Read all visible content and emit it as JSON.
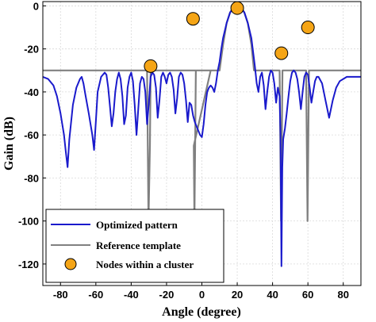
{
  "chart_data": {
    "type": "line",
    "title": "",
    "xlabel": "Angle (degree)",
    "ylabel": "Gain (dB)",
    "xlim": [
      -90,
      90
    ],
    "ylim": [
      -130,
      2
    ],
    "xticks": [
      -80,
      -60,
      -40,
      -20,
      0,
      20,
      40,
      60,
      80
    ],
    "yticks": [
      0,
      -20,
      -40,
      -60,
      -80,
      -100,
      -120
    ],
    "grid": true,
    "legend_position": "bottom-left",
    "series": [
      {
        "name": "Optimized pattern",
        "color": "#1a1acc",
        "x": [
          -90,
          -87,
          -84,
          -82,
          -80,
          -78,
          -77,
          -76,
          -75,
          -73,
          -71,
          -69,
          -68,
          -67,
          -66,
          -64,
          -62,
          -61,
          -60,
          -59,
          -57,
          -55,
          -54,
          -53,
          -52,
          -51,
          -50,
          -49,
          -48,
          -47,
          -46,
          -45,
          -44,
          -43,
          -42,
          -41,
          -40,
          -39,
          -38,
          -37,
          -36,
          -35,
          -34,
          -33,
          -32,
          -31,
          -30,
          -29,
          -28,
          -27,
          -26,
          -25,
          -24,
          -23,
          -22,
          -21,
          -20,
          -19,
          -18,
          -17,
          -16,
          -15,
          -14,
          -13,
          -12,
          -11,
          -10,
          -9,
          -8,
          -7,
          -6,
          -5,
          -4,
          -3,
          -2,
          -1,
          0,
          1,
          2,
          3,
          4,
          5,
          6,
          7,
          8,
          9,
          10,
          11,
          12,
          14,
          16,
          18,
          20,
          22,
          24,
          26,
          28,
          30,
          31,
          32,
          33,
          34,
          35,
          36,
          37,
          38,
          39,
          40,
          41,
          42,
          43,
          44,
          44.5,
          45,
          45.5,
          46,
          47,
          48,
          49,
          50,
          51,
          52,
          53,
          54,
          55,
          56,
          57,
          58,
          59,
          60,
          61,
          62,
          63,
          64,
          65,
          66,
          68,
          70,
          72,
          74,
          76,
          78,
          80,
          82,
          84,
          86,
          88,
          90
        ],
        "y": [
          -33,
          -34,
          -37,
          -42,
          -50,
          -60,
          -68,
          -75,
          -62,
          -46,
          -38,
          -34,
          -33,
          -36,
          -41,
          -50,
          -60,
          -67,
          -54,
          -40,
          -33,
          -31,
          -32,
          -38,
          -47,
          -56,
          -50,
          -40,
          -34,
          -31,
          -34,
          -42,
          -55,
          -51,
          -38,
          -33,
          -31,
          -35,
          -46,
          -60,
          -48,
          -36,
          -33,
          -34,
          -40,
          -55,
          -45,
          -33,
          -31,
          -32,
          -38,
          -52,
          -44,
          -33,
          -31,
          -33,
          -36,
          -32,
          -31,
          -33,
          -39,
          -50,
          -43,
          -33,
          -31,
          -32,
          -36,
          -44,
          -54,
          -45,
          -46,
          -51,
          -54,
          -56,
          -58,
          -60,
          -61,
          -55,
          -46,
          -40,
          -38,
          -37,
          -38,
          -40,
          -36,
          -30,
          -26,
          -20,
          -15,
          -8,
          -3,
          -1,
          -0.5,
          -1,
          -3,
          -8,
          -15,
          -28,
          -36,
          -40,
          -33,
          -31,
          -37,
          -48,
          -40,
          -33,
          -30,
          -31,
          -36,
          -45,
          -38,
          -42,
          -60,
          -121,
          -75,
          -62,
          -57,
          -50,
          -42,
          -35,
          -31,
          -30,
          -31,
          -34,
          -40,
          -48,
          -40,
          -33,
          -31,
          -32,
          -38,
          -45,
          -40,
          -35,
          -33,
          -33,
          -36,
          -44,
          -52,
          -44,
          -38,
          -35,
          -34,
          -33,
          -33,
          -33,
          -33,
          -33
        ],
        "approximate": true
      },
      {
        "name": "Reference template",
        "color": "#808080",
        "x": [
          -90,
          -31,
          -30.6,
          -30.2,
          -29.4,
          -29,
          5,
          -4.6,
          -4.2,
          -3.8,
          -3.4,
          9.5,
          10,
          12,
          14,
          16,
          18,
          20,
          22,
          24,
          26,
          28,
          29.5,
          30,
          44,
          44.4,
          44.8,
          45.2,
          45.6,
          59,
          59.4,
          59.8,
          60.2,
          60.6,
          90
        ],
        "y": [
          -30,
          -30,
          -65,
          -100,
          -65,
          -30,
          -30,
          -65,
          -100,
          -65,
          -30,
          -30,
          -30,
          -18,
          -8,
          -3,
          -0.5,
          0,
          -0.5,
          -3,
          -8,
          -18,
          -30,
          -30,
          -30,
          -65,
          -100,
          -65,
          -30,
          -30,
          -65,
          -100,
          -65,
          -30,
          -30
        ],
        "approximate": true
      }
    ],
    "markers": {
      "name": "Nodes within a cluster",
      "color": "#f5a516",
      "edge_color": "#000000",
      "points": [
        {
          "x": -29,
          "y": -28
        },
        {
          "x": -5,
          "y": -6
        },
        {
          "x": 20,
          "y": -1
        },
        {
          "x": 45,
          "y": -22
        },
        {
          "x": 60,
          "y": -10
        }
      ]
    }
  }
}
